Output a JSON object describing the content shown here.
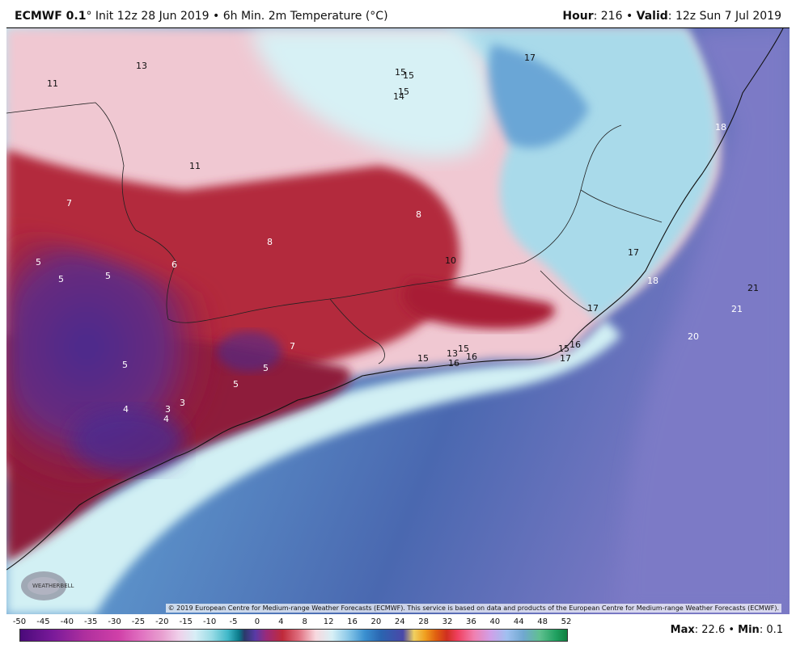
{
  "header": {
    "model": "ECMWF 0.1",
    "init_text": "° Init 12z 28 Jun 2019 • 6h Min. 2m Temperature (°C)",
    "hour_label": "Hour",
    "hour_value": ": 216 • ",
    "valid_label": "Valid",
    "valid_value": ": 12z Sun 7 Jul 2019"
  },
  "map": {
    "copyright": "© 2019 European Centre for Medium-range Weather Forecasts (ECMWF). This service is based on data and products of the European Centre for Medium-range Weather Forecasts (ECMWF).",
    "logo_text": "WEATHERBELL",
    "point_values": [
      "13",
      "11",
      "15",
      "15",
      "15",
      "14",
      "17",
      "18",
      "11",
      "7",
      "8",
      "10",
      "8",
      "6",
      "5",
      "5",
      "5",
      "17",
      "18",
      "21",
      "17",
      "21",
      "20",
      "7",
      "5",
      "5",
      "15",
      "13",
      "15",
      "16",
      "16",
      "15",
      "16",
      "17",
      "5",
      "4",
      "3",
      "3",
      "4"
    ]
  },
  "colorbar": {
    "ticks": [
      "-50",
      "-45",
      "-40",
      "-35",
      "-30",
      "-25",
      "-20",
      "-15",
      "-10",
      "-5",
      "0",
      "4",
      "8",
      "12",
      "16",
      "20",
      "24",
      "28",
      "32",
      "36",
      "40",
      "44",
      "48",
      "52"
    ]
  },
  "stats": {
    "max_label": "Max",
    "max_value": ": 22.6 • ",
    "min_label": "Min",
    "min_value": ": 0.1"
  },
  "colors": {
    "cold_purple": "#3a2a8c",
    "deep_red": "#a3182e",
    "pink": "#f1c6cf",
    "light_cyan": "#c8eef0",
    "ocean_blue": "#4a74b4",
    "ocean_violet": "#7474c0"
  }
}
